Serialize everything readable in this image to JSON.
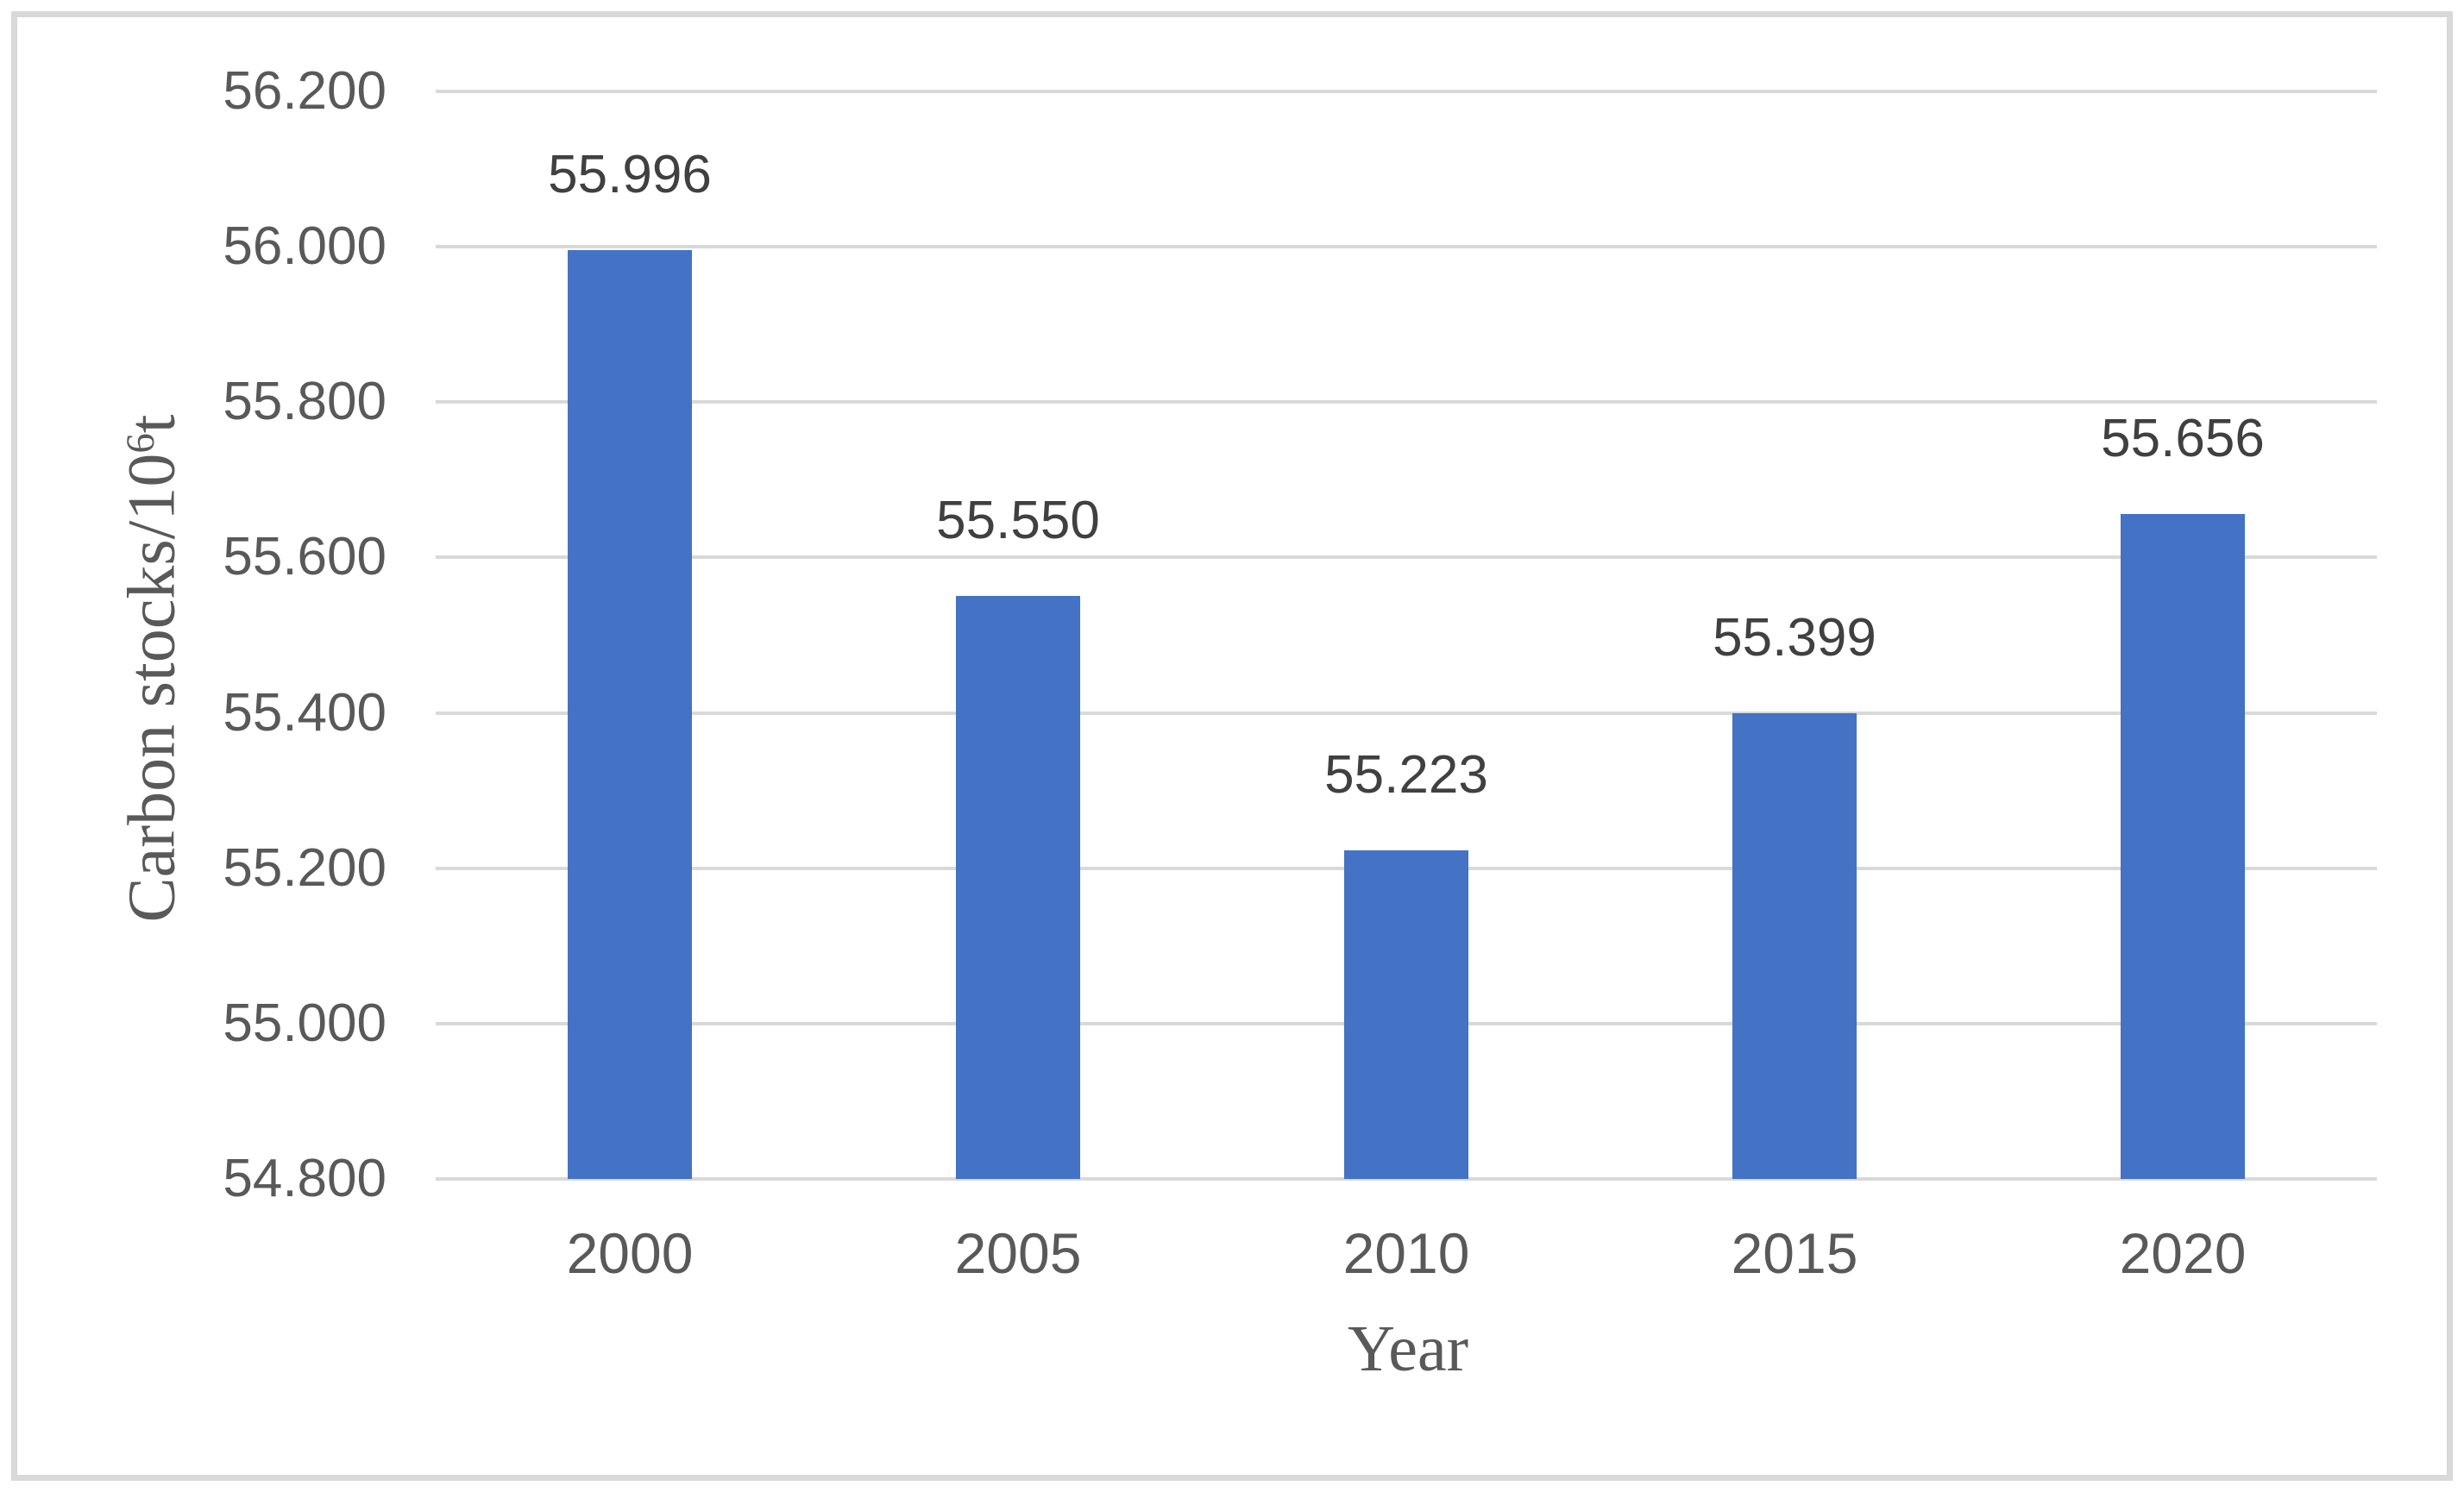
{
  "chart_data": {
    "type": "bar",
    "title": "",
    "categories": [
      "2000",
      "2005",
      "2010",
      "2015",
      "2020"
    ],
    "values": [
      55.996,
      55.55,
      55.223,
      55.399,
      55.656
    ],
    "data_labels": [
      "55.996",
      "55.550",
      "55.223",
      "55.399",
      "55.656"
    ],
    "xlabel": "Year",
    "ylabel": "Carbon stocks/10⁶t",
    "ylim": [
      54.8,
      56.2
    ],
    "ytick_step": 0.2,
    "yticks": [
      {
        "v": 54.8,
        "label": "54.800"
      },
      {
        "v": 55.0,
        "label": "55.000"
      },
      {
        "v": 55.2,
        "label": "55.200"
      },
      {
        "v": 55.4,
        "label": "55.400"
      },
      {
        "v": 55.6,
        "label": "55.600"
      },
      {
        "v": 55.8,
        "label": "55.800"
      },
      {
        "v": 56.0,
        "label": "56.000"
      },
      {
        "v": 56.2,
        "label": "56.200"
      }
    ],
    "grid": true,
    "legend": null,
    "bar_color": "#4472C4",
    "gridline_color": "#D9D9D9",
    "tick_text_color": "#595959",
    "data_label_color": "#404040",
    "axis_title_color": "#595959",
    "border_color": "#D9D9D9"
  },
  "axes": {
    "x_title": "Year",
    "y_title_prefix": "Carbon stocks/10",
    "y_title_sup": "6",
    "y_title_suffix": "t"
  }
}
